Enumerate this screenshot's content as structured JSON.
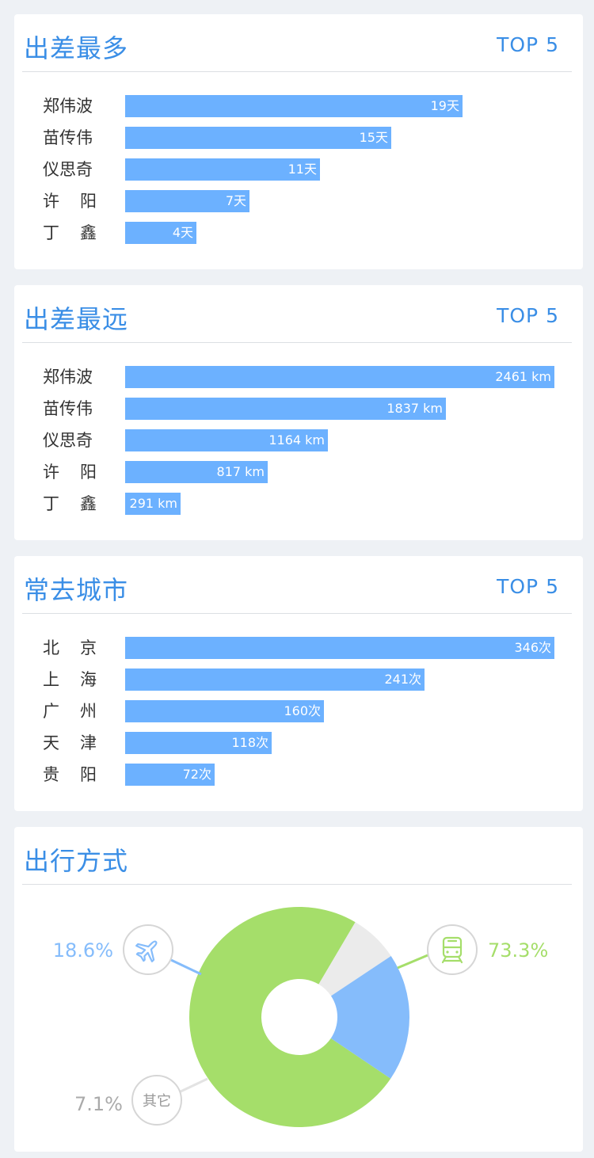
{
  "sections": [
    {
      "title": "出差最多",
      "badge": "TOP 5",
      "rows": [
        {
          "name": "郑伟波",
          "value": 19,
          "label": "19天"
        },
        {
          "name": "苗传伟",
          "value": 15,
          "label": "15天"
        },
        {
          "name": "仪思奇",
          "value": 11,
          "label": "11天"
        },
        {
          "name": "许阳",
          "value": 7,
          "label": "7天"
        },
        {
          "name": "丁鑫",
          "value": 4,
          "label": "4天"
        }
      ]
    },
    {
      "title": "出差最远",
      "badge": "TOP 5",
      "rows": [
        {
          "name": "郑伟波",
          "value": 2461,
          "label": "2461 km"
        },
        {
          "name": "苗传伟",
          "value": 1837,
          "label": "1837 km"
        },
        {
          "name": "仪思奇",
          "value": 1164,
          "label": "1164 km"
        },
        {
          "name": "许阳",
          "value": 817,
          "label": "817 km"
        },
        {
          "name": "丁鑫",
          "value": 291,
          "label": "291 km"
        }
      ]
    },
    {
      "title": "常去城市",
      "badge": "TOP 5",
      "rows": [
        {
          "name": "北京",
          "value": 346,
          "label": "346次"
        },
        {
          "name": "上海",
          "value": 241,
          "label": "241次"
        },
        {
          "name": "广州",
          "value": 160,
          "label": "160次"
        },
        {
          "name": "天津",
          "value": 118,
          "label": "118次"
        },
        {
          "name": "贵阳",
          "value": 72,
          "label": "72次"
        }
      ]
    }
  ],
  "travel_mode": {
    "title": "出行方式"
  },
  "chart_data": {
    "type": "pie",
    "slices": [
      {
        "name": "train",
        "value": 73.3,
        "label": "73.3%",
        "color": "#a5de6a",
        "icon": "train-icon"
      },
      {
        "name": "其它",
        "value": 7.1,
        "label": "7.1%",
        "color": "#ebebeb",
        "icon": "其它"
      },
      {
        "name": "plane",
        "value": 18.6,
        "label": "18.6%",
        "color": "#85bcfb",
        "icon": "plane-icon"
      }
    ]
  },
  "colors": {
    "accent": "#3a8ee6",
    "bar": "#6cb1ff",
    "background": "#eef1f5",
    "plane": "#85bcfb",
    "train": "#a5de6a",
    "other": "#ebebeb",
    "other_text": "#aaaaaa"
  }
}
